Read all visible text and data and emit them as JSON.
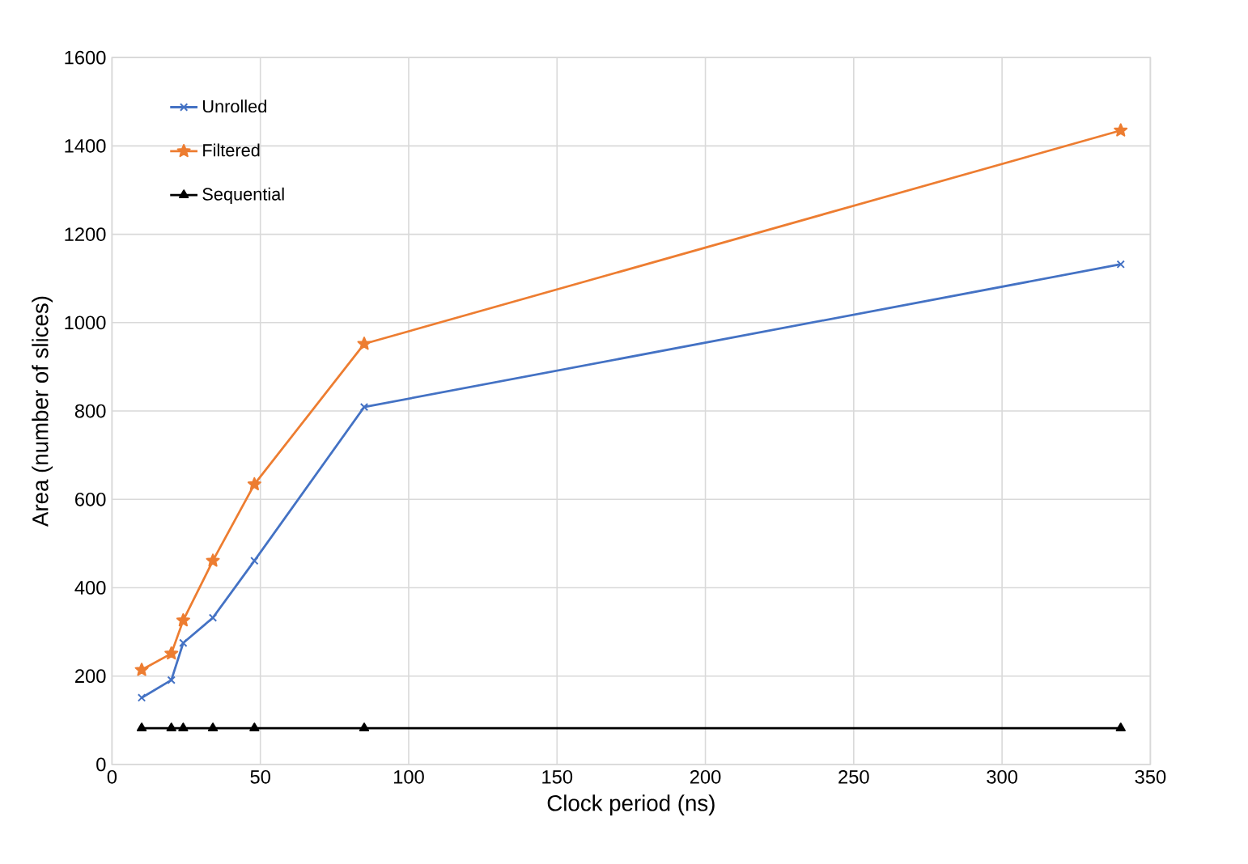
{
  "chart_data": {
    "type": "line",
    "xlabel": "Clock period (ns)",
    "ylabel": "Area (number of slices)",
    "x": [
      10,
      20,
      24,
      34,
      48,
      85,
      340
    ],
    "xlim": [
      0,
      350
    ],
    "xticks": [
      0,
      50,
      100,
      150,
      200,
      250,
      300,
      350
    ],
    "ylim": [
      0,
      1600
    ],
    "yticks": [
      0,
      200,
      400,
      600,
      800,
      1000,
      1200,
      1400,
      1600
    ],
    "grid": true,
    "legend": "top left",
    "series": [
      {
        "name": "Unrolled",
        "color": "#4472c4",
        "marker": "cross",
        "values": [
          151,
          191,
          275,
          332,
          461,
          809,
          1132
        ]
      },
      {
        "name": "Filtered",
        "color": "#ed7d31",
        "marker": "star",
        "values": [
          214,
          251,
          326,
          461,
          634,
          952,
          1435
        ]
      },
      {
        "name": "Sequential",
        "color": "#000000",
        "marker": "triangle",
        "values": [
          82,
          82,
          82,
          82,
          82,
          82,
          82
        ]
      }
    ]
  }
}
